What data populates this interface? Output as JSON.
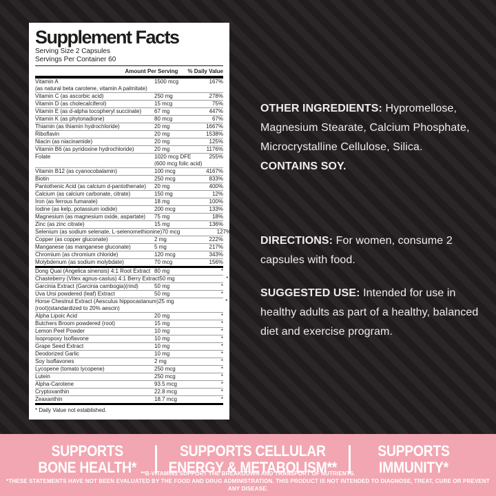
{
  "colors": {
    "background_dark": "#231f21",
    "background_stripe": "#2a2527",
    "panel_bg": "#ffffff",
    "panel_text": "#1d1d1b",
    "banner_pink": "#f2a6b2",
    "light_text": "#efedee"
  },
  "panel": {
    "title": "Supplement Facts",
    "serving_size": "Serving Size 2 Capsules",
    "servings_per_container": "Servings Per Container 60",
    "col_amount": "Amount Per Serving",
    "col_dv": "% Daily Value",
    "footnote": "* Daily Value not established.",
    "nutrients": [
      {
        "name": "Vitamin A",
        "sub": "(as natural beta carotene, vitamin A palmitate)",
        "amount": "1500 mcg",
        "dv": "167%"
      },
      {
        "name": "Vitamin C (as ascorbic acid)",
        "amount": "250 mg",
        "dv": "278%"
      },
      {
        "name": "Vitamin D (as cholecalciferol)",
        "amount": "15 mcg",
        "dv": "75%"
      },
      {
        "name": "Vitamin E (as d-alpha tocopheryl succinate)",
        "amount": "67 mg",
        "dv": "447%"
      },
      {
        "name": "Vitamin K (as phytonadione)",
        "amount": "80 mcg",
        "dv": "67%"
      },
      {
        "name": "Thiamin (as thiamin hydrochloride)",
        "amount": "20 mg",
        "dv": "1667%"
      },
      {
        "name": "Riboflavin",
        "amount": "20 mg",
        "dv": "1538%"
      },
      {
        "name": "Niacin (as niacinamide)",
        "amount": "20 mg",
        "dv": "125%"
      },
      {
        "name": "Vitamin B6 (as pyridoxine hydrochloride)",
        "amount": "20 mg",
        "dv": "1176%"
      },
      {
        "name": "Folate",
        "amount": "1020 mcg DFE",
        "amount2": "(600 mcg folic acid)",
        "dv": "255%"
      },
      {
        "name": "Vitamin B12 (as cyanocobalamin)",
        "amount": "100 mcg",
        "dv": "4167%"
      },
      {
        "name": "Biotin",
        "amount": "250 mcg",
        "dv": "833%"
      },
      {
        "name": "Pantothenic Acid (as calcium d-pantothenate)",
        "amount": "20 mg",
        "dv": "400%"
      },
      {
        "name": "Calcium (as calcium carbonate, citrate)",
        "amount": "150 mg",
        "dv": "12%"
      },
      {
        "name": "Iron (as ferrous fumarate)",
        "amount": "18 mg",
        "dv": "100%"
      },
      {
        "name": "Iodine (as kelp, potassium iodide)",
        "amount": "200 mcg",
        "dv": "133%"
      },
      {
        "name": "Magnesium (as magnesium oxide, aspartate)",
        "amount": "75 mg",
        "dv": "18%"
      },
      {
        "name": "Zinc (as zinc citrate)",
        "amount": "15 mg",
        "dv": "136%"
      },
      {
        "name": "Selenium (as sodium selenate, L-selenomethionine)",
        "amount": "70 mcg",
        "dv": "127%"
      },
      {
        "name": "Copper (as copper gluconate)",
        "amount": "2 mg",
        "dv": "222%"
      },
      {
        "name": "Manganese (as manganese gluconate)",
        "amount": "5 mg",
        "dv": "217%"
      },
      {
        "name": "Chromium (as chromium chloride)",
        "amount": "120 mcg",
        "dv": "343%"
      },
      {
        "name": "Molybdenum (as sodium molybdate)",
        "amount": "70 mcg",
        "dv": "156%"
      }
    ],
    "botanicals": [
      {
        "name": "Dong Quai (Angelica sinensis) 4:1 Root Extract",
        "amount": "80 mg",
        "dv": "*"
      },
      {
        "name": "Chasteberry (Vitex agnus-castus) 4:1 Berry Extract",
        "amount": "50 mg",
        "dv": "*"
      },
      {
        "name": "Garcinia Extract (Garcinia cambogia)(rind)",
        "amount": "50 mg",
        "dv": "*"
      },
      {
        "name": "Uva Ursi powdered (leaf) Extract",
        "amount": "50 mg",
        "dv": "*"
      },
      {
        "name": "Horse Chestnut Extract (Aesculus hippocastanum)",
        "sub": "(root)(standardized to 20% aescin)",
        "amount": "25 mg",
        "dv": "*"
      },
      {
        "name": "Alpha Lipoic Acid",
        "amount": "20 mg",
        "dv": "*"
      },
      {
        "name": "Butchers Broom powdered (root)",
        "amount": "15 mg",
        "dv": "*"
      },
      {
        "name": "Lemon Peel Powder",
        "amount": "10 mg",
        "dv": "*"
      },
      {
        "name": "Isopropoxy Isoflavone",
        "amount": "10 mg",
        "dv": "*"
      },
      {
        "name": "Grape Seed Extract",
        "amount": "10 mg",
        "dv": "*"
      },
      {
        "name": "Deodorized Garlic",
        "amount": "10 mg",
        "dv": "*"
      },
      {
        "name": "Soy Isoflavones",
        "amount": "2 mg",
        "dv": "*"
      },
      {
        "name": "Lycopene (tomato lycopene)",
        "amount": "250 mcg",
        "dv": "*"
      },
      {
        "name": "Lutein",
        "amount": "250 mcg",
        "dv": "*"
      },
      {
        "name": "Alpha-Carotene",
        "amount": "93.5 mcg",
        "dv": "*"
      },
      {
        "name": "Cryptoxanthin",
        "amount": "22.8 mcg",
        "dv": "*"
      },
      {
        "name": "Zeaxanthin",
        "amount": "18.7 mcg",
        "dv": "*"
      }
    ]
  },
  "info": {
    "other_label": "OTHER INGREDIENTS:",
    "other_text": " Hypromellose, Magnesium Stearate, Calcium Phosphate, Microcrystalline Cellulose, Silica.",
    "contains": "CONTAINS SOY.",
    "directions_label": "DIRECTIONS:",
    "directions_text": " For women, consume 2 capsules with food.",
    "suggested_label": "SUGGESTED USE:",
    "suggested_text": " Intended for use in healthy adults as part of a healthy, balanced diet and exercise program."
  },
  "banner": {
    "claims": [
      {
        "line1": "SUPPORTS",
        "line2": "BONE HEALTH*"
      },
      {
        "line1": "SUPPORTS CELLULAR",
        "line2": "ENERGY & METABOLISM**"
      },
      {
        "line1": "SUPPORTS",
        "line2": "IMMUNITY*"
      }
    ],
    "footnote1": "**B-VITAMINS SUPPORT THE BREAKDOWN AND TRANSPORT OF NUTRIENTS.",
    "footnote2": "*THESE STATEMENTS HAVE NOT BEEN EVALUATED BY THE FOOD AND DRUG ADMINISTRATION. THIS PRODUCT IS NOT INTENDED TO DIAGNOSE, TREAT, CURE OR PREVENT ANY DISEASE."
  }
}
